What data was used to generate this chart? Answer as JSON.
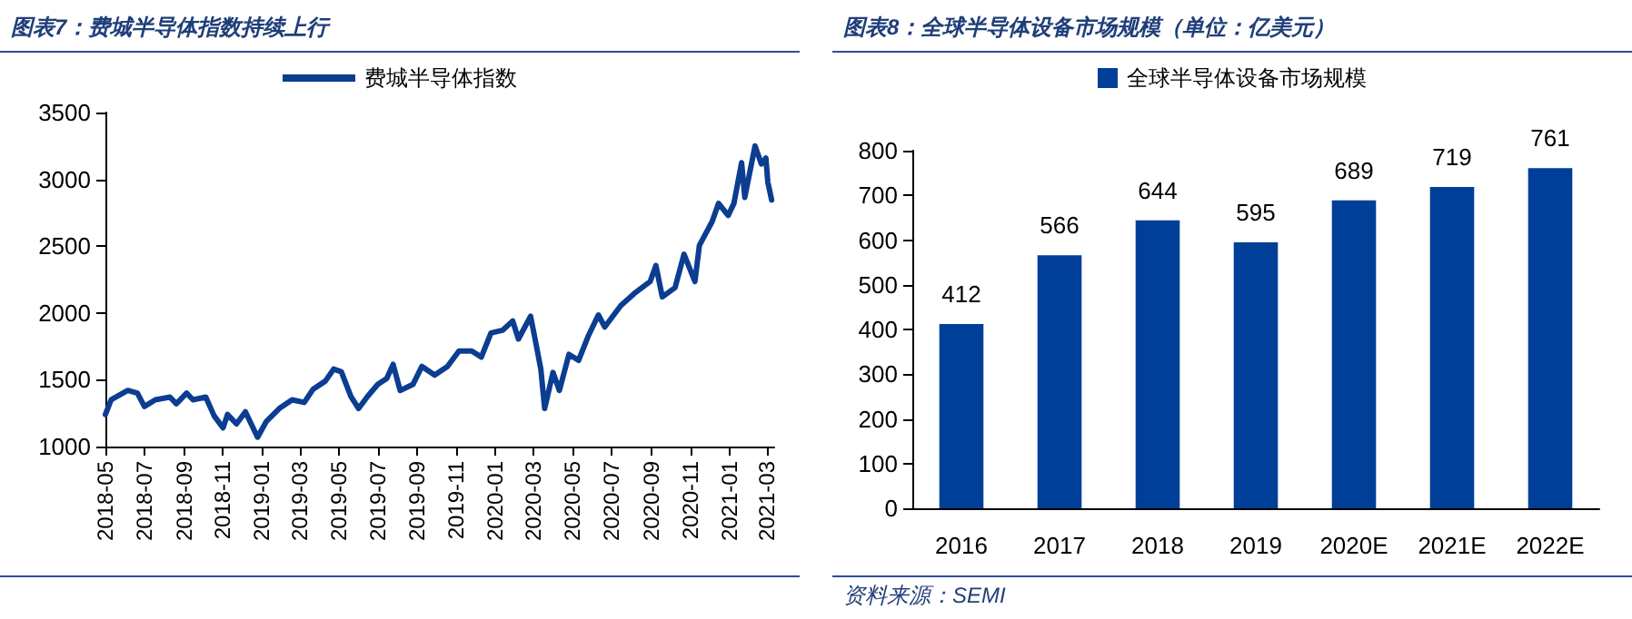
{
  "chart_data": [
    {
      "type": "line",
      "title": "图表7：费城半导体指数持续上行",
      "legend": "top",
      "marker": "none",
      "xlim": [
        "2018-05-01",
        "2021-03-12"
      ],
      "xticks": [
        "2018-05",
        "2018-07",
        "2018-09",
        "2018-11",
        "2019-01",
        "2019-03",
        "2019-05",
        "2019-07",
        "2019-09",
        "2019-11",
        "2020-01",
        "2020-03",
        "2020-05",
        "2020-07",
        "2020-09",
        "2020-11",
        "2021-01",
        "2021-03"
      ],
      "ylim": [
        1000,
        3500
      ],
      "yticks": [
        1000,
        1500,
        2000,
        2500,
        3000,
        3500
      ],
      "x": [
        "2018-05-01",
        "2018-05-10",
        "2018-06-05",
        "2018-06-20",
        "2018-07-01",
        "2018-07-18",
        "2018-08-10",
        "2018-08-20",
        "2018-09-05",
        "2018-09-15",
        "2018-10-05",
        "2018-10-18",
        "2018-11-01",
        "2018-11-08",
        "2018-11-22",
        "2018-12-06",
        "2018-12-16",
        "2018-12-25",
        "2019-01-08",
        "2019-01-28",
        "2019-02-17",
        "2019-03-08",
        "2019-03-22",
        "2019-04-10",
        "2019-04-23",
        "2019-05-05",
        "2019-05-20",
        "2019-06-01",
        "2019-06-15",
        "2019-07-01",
        "2019-07-15",
        "2019-07-25",
        "2019-08-05",
        "2019-08-25",
        "2019-09-08",
        "2019-09-28",
        "2019-10-18",
        "2019-11-05",
        "2019-11-25",
        "2019-12-10",
        "2019-12-25",
        "2020-01-12",
        "2020-01-28",
        "2020-02-06",
        "2020-02-25",
        "2020-03-03",
        "2020-03-12",
        "2020-03-18",
        "2020-03-31",
        "2020-04-10",
        "2020-04-25",
        "2020-05-10",
        "2020-05-25",
        "2020-06-10",
        "2020-06-20",
        "2020-07-15",
        "2020-08-05",
        "2020-08-30",
        "2020-09-08",
        "2020-09-18",
        "2020-10-08",
        "2020-10-22",
        "2020-11-08",
        "2020-11-15",
        "2020-12-05",
        "2020-12-15",
        "2020-12-30",
        "2021-01-08",
        "2021-01-20",
        "2021-01-25",
        "2021-02-10",
        "2021-02-20",
        "2021-02-27",
        "2021-03-02",
        "2021-03-08"
      ],
      "series": [
        {
          "name": "费城半导体指数",
          "color": "#0b3d91",
          "values": [
            1240,
            1350,
            1420,
            1400,
            1300,
            1350,
            1370,
            1320,
            1400,
            1350,
            1370,
            1230,
            1140,
            1240,
            1170,
            1260,
            1160,
            1070,
            1190,
            1285,
            1350,
            1330,
            1430,
            1490,
            1580,
            1560,
            1375,
            1285,
            1375,
            1465,
            1510,
            1615,
            1420,
            1465,
            1600,
            1535,
            1600,
            1715,
            1715,
            1670,
            1850,
            1870,
            1940,
            1805,
            1975,
            1805,
            1580,
            1285,
            1555,
            1420,
            1690,
            1645,
            1825,
            1985,
            1895,
            2055,
            2145,
            2235,
            2355,
            2120,
            2190,
            2440,
            2235,
            2505,
            2685,
            2820,
            2730,
            2820,
            3125,
            2865,
            3250,
            3115,
            3160,
            2980,
            2845
          ]
        }
      ]
    },
    {
      "type": "bar",
      "title": "图表8：全球半导体设备市场规模（单位：亿美元）",
      "legend": "top",
      "data_labels": true,
      "categories": [
        "2016",
        "2017",
        "2018",
        "2019",
        "2020E",
        "2021E",
        "2022E"
      ],
      "ylim": [
        0,
        800
      ],
      "yticks": [
        0,
        100,
        200,
        300,
        400,
        500,
        600,
        700,
        800
      ],
      "series": [
        {
          "name": "全球半导体设备市场规模",
          "color": "#003f98",
          "values": [
            412,
            566,
            644,
            595,
            689,
            719,
            761
          ]
        }
      ],
      "annotations": [
        "资料来源：SEMI"
      ]
    }
  ]
}
